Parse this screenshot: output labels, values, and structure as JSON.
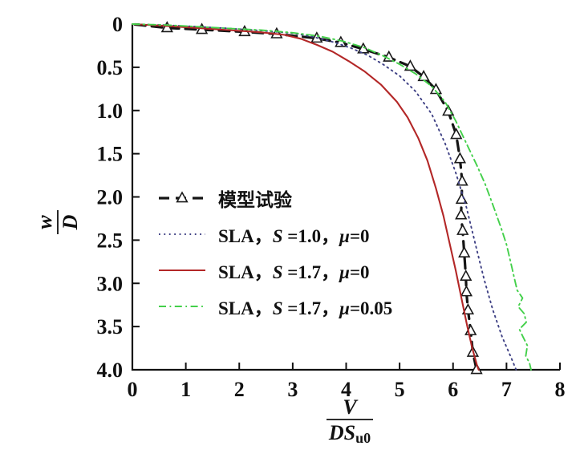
{
  "figure": {
    "title": "",
    "background": "#ffffff"
  },
  "chart_data": {
    "type": "line",
    "title": "",
    "xlabel": "V / (D·Su0)",
    "ylabel": "w / D",
    "x_axis": {
      "label_fraction": {
        "numerator": "V",
        "denominator": "DS",
        "denominator_sub": "u0"
      },
      "min": 0,
      "max": 8,
      "ticks": [
        "0",
        "1",
        "2",
        "3",
        "4",
        "5",
        "6",
        "7",
        "8"
      ]
    },
    "y_axis": {
      "label_fraction": {
        "numerator": "w",
        "denominator": "D"
      },
      "min": 0,
      "max": 4,
      "inverted_down": true,
      "ticks": [
        "0",
        "0.5",
        "1.0",
        "1.5",
        "2.0",
        "2.5",
        "3.0",
        "3.5",
        "4.0"
      ]
    },
    "grid": false,
    "legend_position": "inside-center-left",
    "series": [
      {
        "name": "模型试验",
        "label_parts": [
          [
            "模型试验",
            false
          ]
        ],
        "color": "#141414",
        "line_style": "dashed",
        "line_width": 3.2,
        "marker": "triangle",
        "marker_skip_first": 1,
        "points": [
          [
            0.05,
            0.005
          ],
          [
            0.65,
            0.045
          ],
          [
            1.3,
            0.065
          ],
          [
            2.1,
            0.09
          ],
          [
            2.7,
            0.115
          ],
          [
            3.45,
            0.165
          ],
          [
            3.9,
            0.215
          ],
          [
            4.32,
            0.29
          ],
          [
            4.8,
            0.385
          ],
          [
            5.2,
            0.49
          ],
          [
            5.45,
            0.61
          ],
          [
            5.68,
            0.76
          ],
          [
            5.91,
            1.01
          ],
          [
            6.06,
            1.28
          ],
          [
            6.13,
            1.56
          ],
          [
            6.17,
            1.82
          ],
          [
            6.16,
            2.03
          ],
          [
            6.15,
            2.21
          ],
          [
            6.18,
            2.39
          ],
          [
            6.21,
            2.65
          ],
          [
            6.24,
            2.92
          ],
          [
            6.25,
            3.1
          ],
          [
            6.28,
            3.31
          ],
          [
            6.33,
            3.55
          ],
          [
            6.37,
            3.8
          ],
          [
            6.44,
            4.0
          ]
        ]
      },
      {
        "name": "SLA，S =1.0，μ=0",
        "label_parts": [
          [
            "SLA，",
            false
          ],
          [
            "S",
            true
          ],
          [
            " =1.0，",
            false
          ],
          [
            "μ",
            true
          ],
          [
            "=0",
            false
          ]
        ],
        "color": "#3f4185",
        "line_style": "dotted",
        "line_width": 1.9,
        "marker": "none",
        "points": [
          [
            0,
            0
          ],
          [
            0.6,
            0.012
          ],
          [
            1.2,
            0.03
          ],
          [
            1.8,
            0.05
          ],
          [
            2.4,
            0.075
          ],
          [
            3.0,
            0.105
          ],
          [
            3.4,
            0.15
          ],
          [
            3.8,
            0.215
          ],
          [
            4.1,
            0.28
          ],
          [
            4.4,
            0.36
          ],
          [
            4.7,
            0.47
          ],
          [
            5.0,
            0.6
          ],
          [
            5.3,
            0.78
          ],
          [
            5.6,
            1.04
          ],
          [
            5.85,
            1.38
          ],
          [
            6.05,
            1.72
          ],
          [
            6.25,
            2.12
          ],
          [
            6.42,
            2.55
          ],
          [
            6.58,
            2.95
          ],
          [
            6.74,
            3.3
          ],
          [
            6.92,
            3.62
          ],
          [
            7.08,
            3.85
          ],
          [
            7.18,
            4.0
          ]
        ]
      },
      {
        "name": "SLA，S =1.7，μ=0",
        "label_parts": [
          [
            "SLA，",
            false
          ],
          [
            "S",
            true
          ],
          [
            " =1.7，",
            false
          ],
          [
            "μ",
            true
          ],
          [
            "=0",
            false
          ]
        ],
        "color": "#b32727",
        "line_style": "solid",
        "line_width": 2.1,
        "marker": "none",
        "points": [
          [
            0,
            0
          ],
          [
            0.6,
            0.02
          ],
          [
            1.2,
            0.045
          ],
          [
            1.8,
            0.07
          ],
          [
            2.4,
            0.095
          ],
          [
            2.85,
            0.125
          ],
          [
            3.15,
            0.17
          ],
          [
            3.45,
            0.24
          ],
          [
            3.75,
            0.32
          ],
          [
            4.05,
            0.43
          ],
          [
            4.35,
            0.55
          ],
          [
            4.65,
            0.7
          ],
          [
            4.95,
            0.9
          ],
          [
            5.15,
            1.08
          ],
          [
            5.35,
            1.32
          ],
          [
            5.52,
            1.58
          ],
          [
            5.68,
            1.9
          ],
          [
            5.82,
            2.22
          ],
          [
            5.94,
            2.55
          ],
          [
            6.05,
            2.85
          ],
          [
            6.16,
            3.18
          ],
          [
            6.26,
            3.48
          ],
          [
            6.36,
            3.75
          ],
          [
            6.45,
            3.95
          ],
          [
            6.48,
            4.0
          ]
        ]
      },
      {
        "name": "SLA，S =1.7，μ=0.05",
        "label_parts": [
          [
            "SLA，",
            false
          ],
          [
            "S",
            true
          ],
          [
            " =1.7，",
            false
          ],
          [
            "μ",
            true
          ],
          [
            "=0.05",
            false
          ]
        ],
        "color": "#43d04a",
        "line_style": "dashdot",
        "line_width": 1.9,
        "marker": "none",
        "points": [
          [
            0,
            0
          ],
          [
            0.6,
            0.01
          ],
          [
            1.2,
            0.03
          ],
          [
            1.8,
            0.05
          ],
          [
            2.4,
            0.07
          ],
          [
            3.0,
            0.1
          ],
          [
            3.5,
            0.14
          ],
          [
            3.95,
            0.2
          ],
          [
            4.35,
            0.275
          ],
          [
            4.7,
            0.37
          ],
          [
            5.0,
            0.465
          ],
          [
            5.3,
            0.575
          ],
          [
            5.6,
            0.72
          ],
          [
            5.85,
            0.9
          ],
          [
            6.05,
            1.12
          ],
          [
            6.28,
            1.42
          ],
          [
            6.45,
            1.64
          ],
          [
            6.6,
            1.85
          ],
          [
            6.75,
            2.1
          ],
          [
            6.9,
            2.36
          ],
          [
            7.0,
            2.55
          ],
          [
            7.08,
            2.76
          ],
          [
            7.15,
            2.95
          ],
          [
            7.2,
            3.08
          ],
          [
            7.3,
            3.17
          ],
          [
            7.22,
            3.27
          ],
          [
            7.33,
            3.35
          ],
          [
            7.37,
            3.45
          ],
          [
            7.24,
            3.53
          ],
          [
            7.31,
            3.62
          ],
          [
            7.39,
            3.72
          ],
          [
            7.36,
            3.84
          ],
          [
            7.43,
            3.92
          ],
          [
            7.46,
            4.0
          ]
        ]
      }
    ]
  }
}
